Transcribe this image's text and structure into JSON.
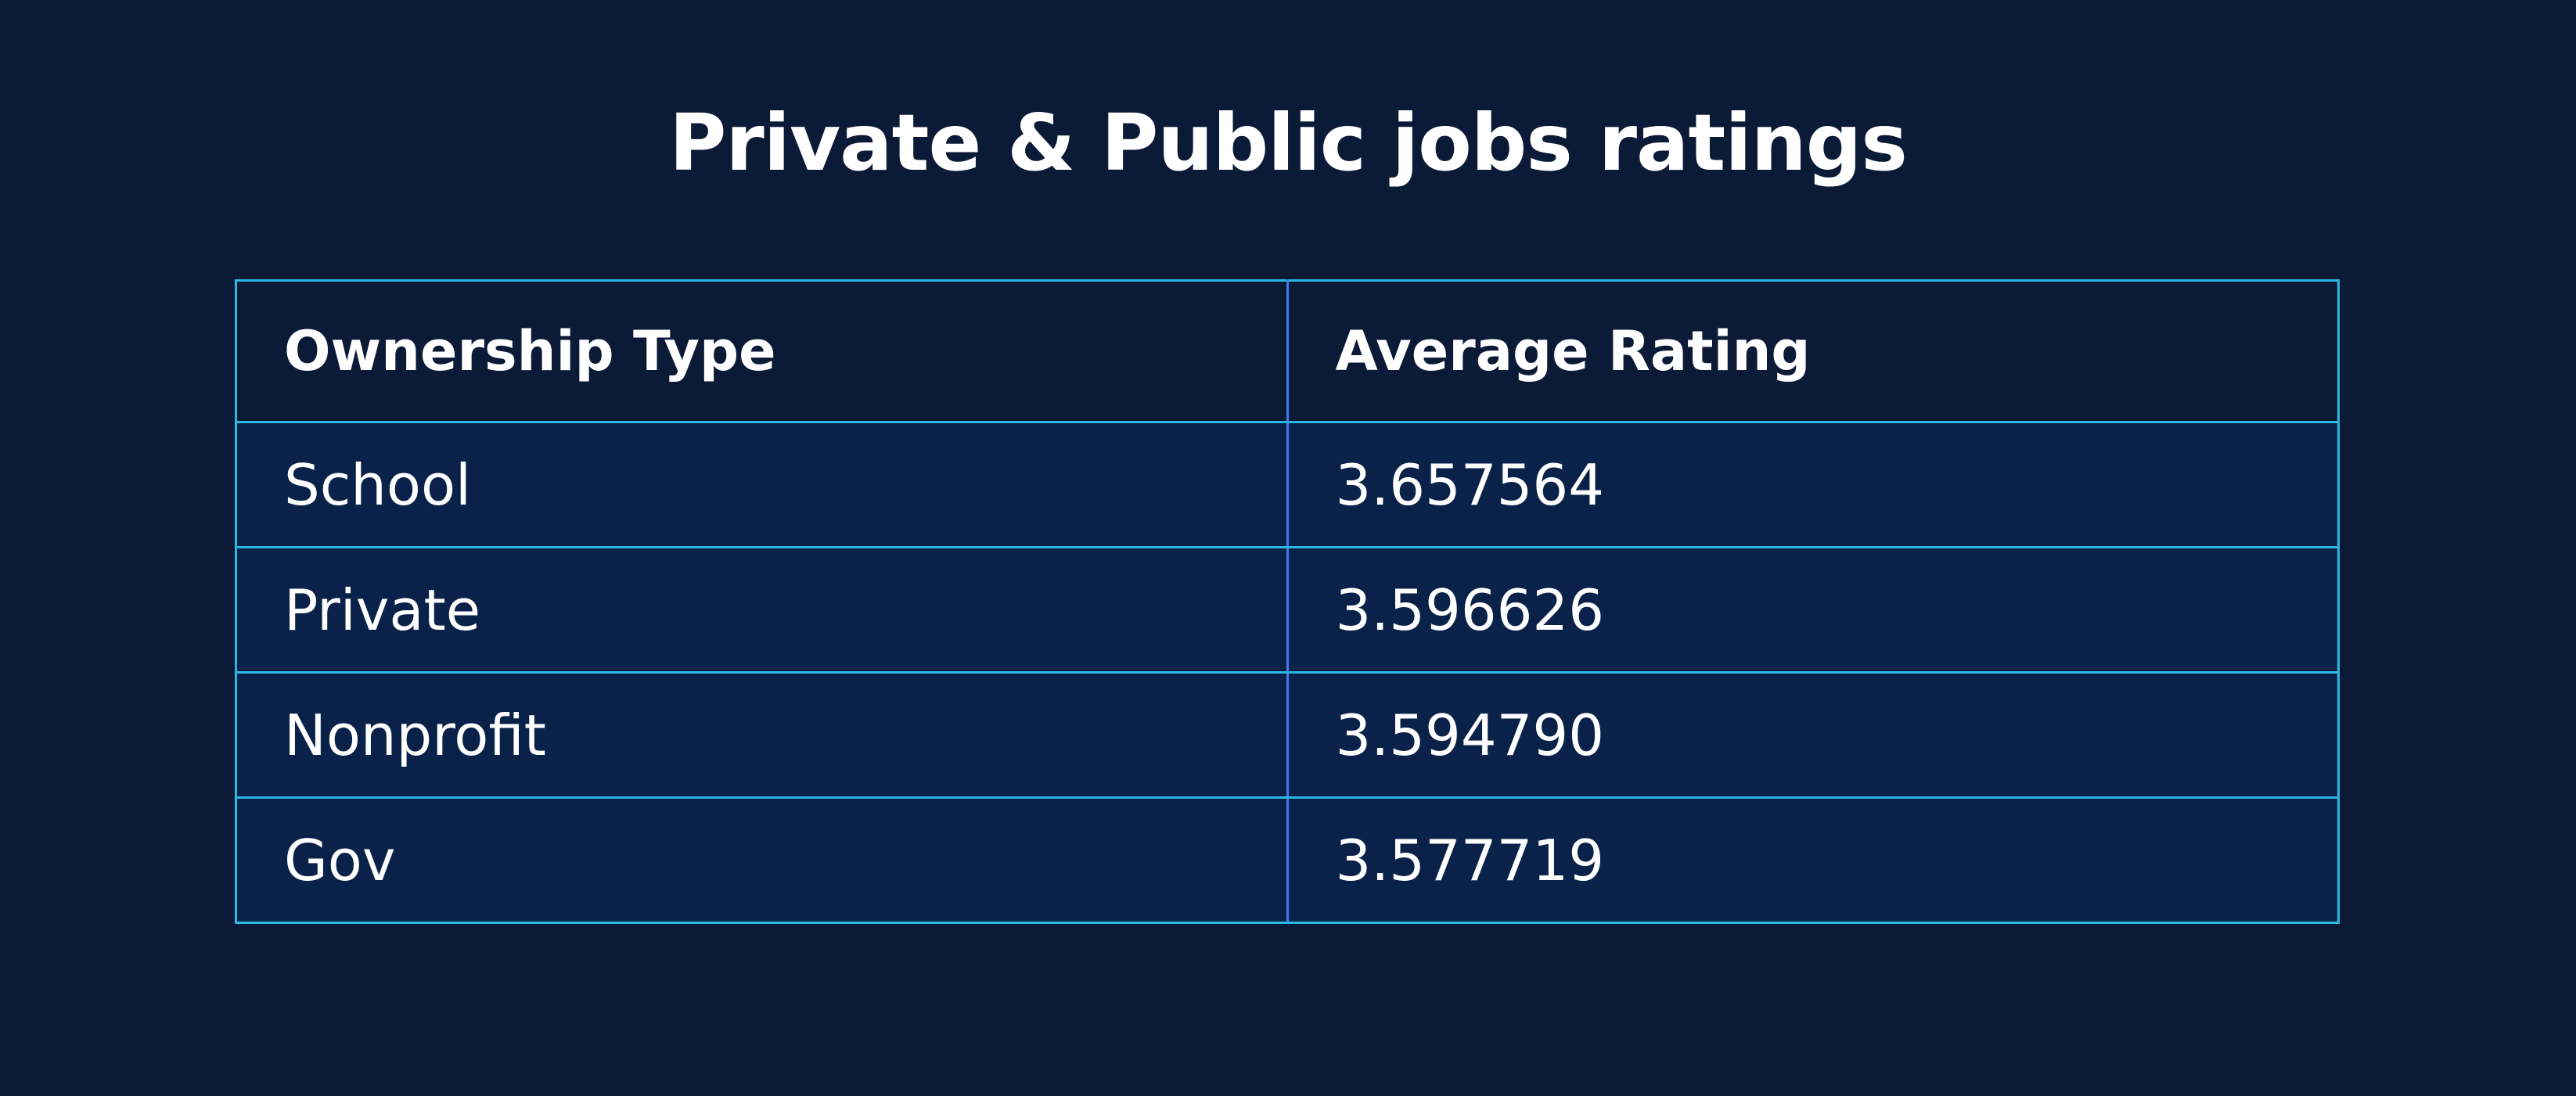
{
  "title": "Private & Public jobs ratings",
  "table": {
    "header": [
      "Ownership Type",
      "Average Rating"
    ],
    "rows": [
      [
        "School",
        "3.657564"
      ],
      [
        "Private",
        "3.596626"
      ],
      [
        "Nonprofit",
        "3.594790"
      ],
      [
        "Gov",
        "3.577719"
      ]
    ]
  }
}
